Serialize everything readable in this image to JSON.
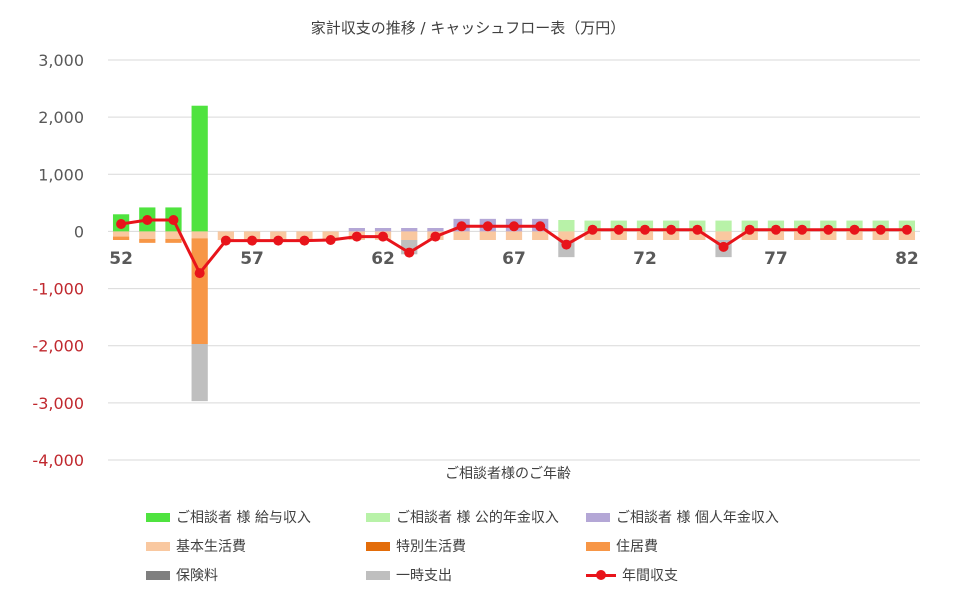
{
  "chart_data": {
    "type": "bar",
    "title": "家計収支の推移 / キャッシュフロー表（万円）",
    "xlabel": "ご相談者様のご年齢",
    "ylabel": "",
    "ylim": [
      -4000,
      3000
    ],
    "yticks": [
      3000,
      2000,
      1000,
      0,
      -1000,
      -2000,
      -3000,
      -4000
    ],
    "ytick_labels": [
      "3,000",
      "2,000",
      "1,000",
      "0",
      "-1,000",
      "-2,000",
      "-3,000",
      "-4,000"
    ],
    "negative_tick_color": "#c0282e",
    "positive_tick_color": "#595959",
    "grid": true,
    "legend_position": "bottom",
    "x": [
      52,
      53,
      54,
      55,
      56,
      57,
      58,
      59,
      60,
      61,
      62,
      63,
      64,
      65,
      66,
      67,
      68,
      69,
      70,
      71,
      72,
      73,
      74,
      75,
      76,
      77,
      78,
      79,
      80,
      81,
      82
    ],
    "xtick_labels": [
      "52",
      "57",
      "62",
      "67",
      "72",
      "77",
      "82"
    ],
    "series": [
      {
        "name": "ご相談者 様 給与収入",
        "kind": "bar",
        "color": "#4fe33f",
        "values": [
          300,
          420,
          420,
          2200,
          0,
          0,
          0,
          0,
          0,
          0,
          0,
          0,
          0,
          0,
          0,
          0,
          0,
          0,
          0,
          0,
          0,
          0,
          0,
          0,
          0,
          0,
          0,
          0,
          0,
          0,
          0
        ]
      },
      {
        "name": "ご相談者 様 公的年金収入",
        "kind": "bar",
        "color": "#b8f2a8",
        "values": [
          0,
          0,
          0,
          0,
          0,
          0,
          0,
          0,
          0,
          0,
          0,
          0,
          0,
          0,
          0,
          0,
          0,
          200,
          190,
          190,
          190,
          190,
          190,
          190,
          190,
          190,
          190,
          190,
          190,
          190,
          190
        ]
      },
      {
        "name": "ご相談者 様 個人年金収入",
        "kind": "bar",
        "color": "#b4a7d6",
        "values": [
          0,
          0,
          0,
          0,
          0,
          0,
          0,
          0,
          0,
          60,
          60,
          60,
          60,
          220,
          220,
          220,
          220,
          0,
          0,
          0,
          0,
          0,
          0,
          0,
          0,
          0,
          0,
          0,
          0,
          0,
          0
        ]
      },
      {
        "name": "基本生活費",
        "kind": "bar",
        "color": "#f9c8a0",
        "values": [
          -90,
          -130,
          -130,
          -120,
          -150,
          -150,
          -150,
          -150,
          -150,
          -150,
          -150,
          -150,
          -150,
          -150,
          -150,
          -150,
          -150,
          -150,
          -150,
          -150,
          -150,
          -150,
          -150,
          -150,
          -150,
          -150,
          -150,
          -150,
          -150,
          -150,
          -150
        ]
      },
      {
        "name": "特別生活費",
        "kind": "bar",
        "color": "#e36c09",
        "values": [
          0,
          0,
          0,
          0,
          0,
          0,
          0,
          0,
          0,
          0,
          0,
          0,
          0,
          0,
          0,
          0,
          0,
          0,
          0,
          0,
          0,
          0,
          0,
          0,
          0,
          0,
          0,
          0,
          0,
          0,
          0
        ]
      },
      {
        "name": "住居費",
        "kind": "bar",
        "color": "#f79646",
        "values": [
          -60,
          -70,
          -70,
          -1850,
          0,
          0,
          0,
          0,
          0,
          0,
          0,
          0,
          0,
          0,
          0,
          0,
          0,
          0,
          0,
          0,
          0,
          0,
          0,
          0,
          0,
          0,
          0,
          0,
          0,
          0,
          0
        ]
      },
      {
        "name": "保険料",
        "kind": "bar",
        "color": "#7f7f7f",
        "values": [
          0,
          0,
          0,
          0,
          0,
          0,
          0,
          0,
          0,
          0,
          0,
          0,
          0,
          0,
          0,
          0,
          0,
          0,
          0,
          0,
          0,
          0,
          0,
          0,
          0,
          0,
          0,
          0,
          0,
          0,
          0
        ]
      },
      {
        "name": "一時支出",
        "kind": "bar",
        "color": "#bfbfbf",
        "values": [
          0,
          0,
          0,
          -1000,
          0,
          0,
          0,
          0,
          0,
          0,
          0,
          -250,
          0,
          0,
          0,
          0,
          0,
          -300,
          0,
          0,
          0,
          0,
          0,
          -300,
          0,
          0,
          0,
          0,
          0,
          0,
          0
        ]
      },
      {
        "name": "年間収支",
        "kind": "line",
        "color": "#e8141b",
        "values": [
          130,
          200,
          200,
          -730,
          -160,
          -160,
          -160,
          -160,
          -150,
          -90,
          -90,
          -370,
          -90,
          90,
          90,
          90,
          90,
          -230,
          30,
          30,
          30,
          30,
          30,
          -270,
          30,
          30,
          30,
          30,
          30,
          30,
          30
        ]
      }
    ]
  }
}
